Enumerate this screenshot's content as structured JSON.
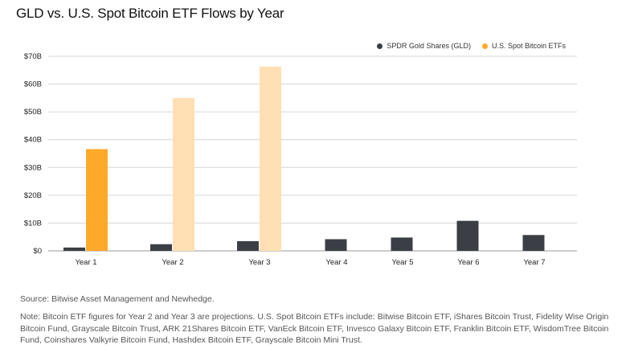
{
  "title": "GLD vs. U.S. Spot Bitcoin ETF Flows by Year",
  "legend": {
    "gld_label": "SPDR Gold Shares (GLD)",
    "btc_label": "U.S. Spot Bitcoin ETFs"
  },
  "colors": {
    "gld": "#3b3f45",
    "btc_actual": "#ffa92b",
    "btc_projected": "#ffdfb3",
    "grid": "#d6d6d6",
    "axis_text": "#222222"
  },
  "chart_data": {
    "type": "bar",
    "categories": [
      "Year 1",
      "Year 2",
      "Year 3",
      "Year 4",
      "Year 5",
      "Year 6",
      "Year 7"
    ],
    "series": [
      {
        "name": "SPDR Gold Shares (GLD)",
        "values": [
          1.2,
          2.4,
          3.5,
          4.2,
          4.8,
          10.8,
          5.7
        ]
      },
      {
        "name": "U.S. Spot Bitcoin ETFs",
        "values": [
          36.6,
          55,
          66.3,
          null,
          null,
          null,
          null
        ],
        "projected": [
          false,
          true,
          true
        ]
      }
    ],
    "y_ticks": [
      0,
      10,
      20,
      30,
      40,
      50,
      60,
      70
    ],
    "y_tick_labels": [
      "$0",
      "$10B",
      "$20B",
      "$30B",
      "$40B",
      "$50B",
      "$60B",
      "$70B"
    ],
    "ylim": [
      0,
      70
    ],
    "grid": true,
    "legend_position": "top-right",
    "xlabel": "",
    "ylabel": ""
  },
  "source": "Source: Bitwise Asset Management and Newhedge.",
  "note": "Note: Bitcoin ETF figures for Year 2 and Year 3 are projections. U.S. Spot Bitcoin ETFs include: Bitwise Bitcoin ETF, iShares Bitcoin Trust, Fidelity Wise Origin Bitcoin Fund, Grayscale Bitcoin Trust, ARK 21Shares Bitcoin ETF, VanEck Bitcoin ETF, Invesco Galaxy Bitcoin ETF, Franklin Bitcoin ETF, WisdomTree Bitcoin Fund, Coinshares Valkyrie Bitcoin Fund, Hashdex Bitcoin ETF, Grayscale Bitcoin Mini Trust."
}
